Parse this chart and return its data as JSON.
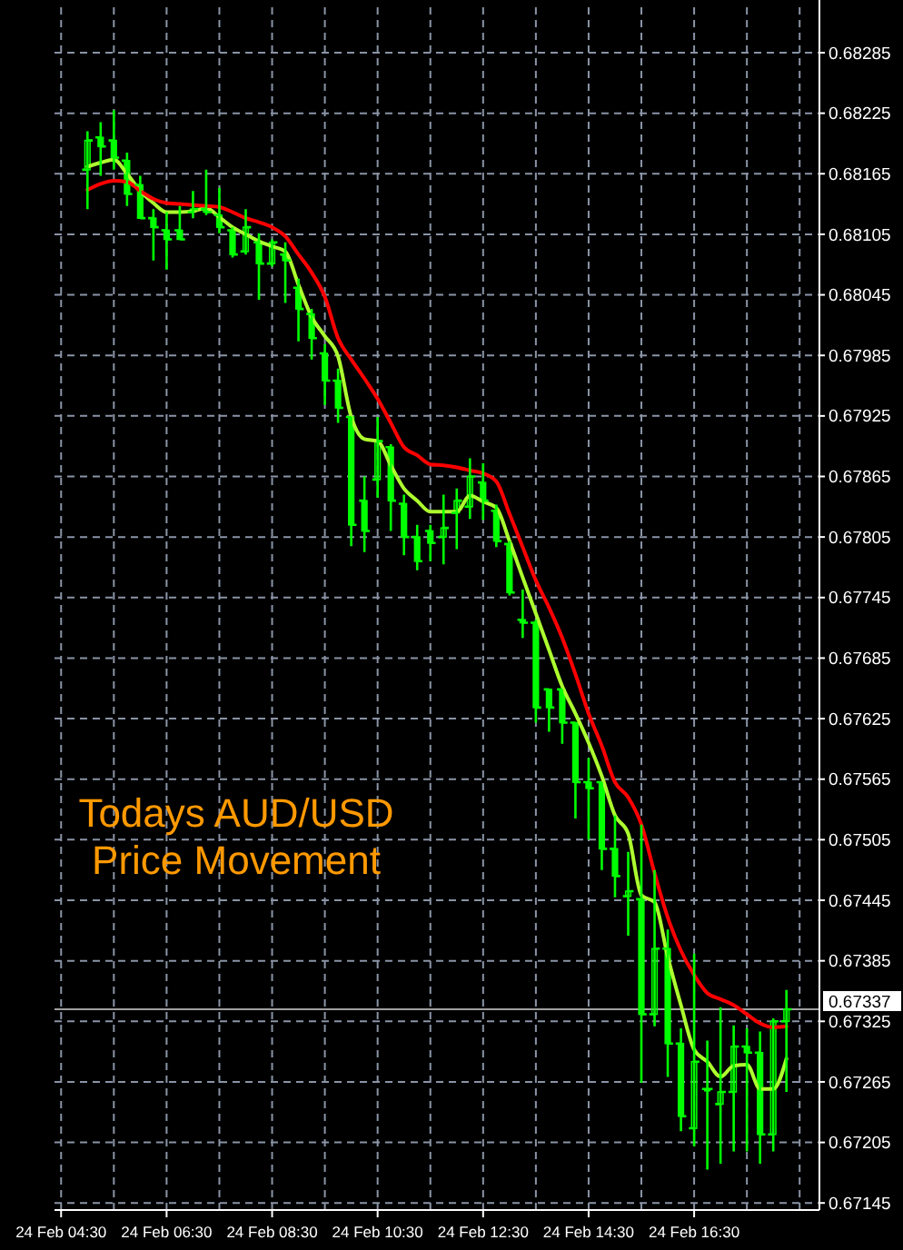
{
  "chart_data": {
    "type": "candlestick",
    "title": "Todays AUD/USD Price Movement",
    "color": "#00ff00",
    "categories": [
      "24 Feb 04:30",
      null,
      null,
      null,
      null,
      null,
      null,
      null,
      "24 Feb 06:30",
      null,
      null,
      null,
      null,
      null,
      null,
      null,
      "24 Feb 08:30",
      null,
      null,
      null,
      null,
      null,
      null,
      null,
      "24 Feb 10:30",
      null,
      null,
      null,
      null,
      null,
      null,
      null,
      "24 Feb 12:30",
      null,
      null,
      null,
      null,
      null,
      null,
      null,
      "24 Feb 14:30",
      null,
      null,
      null,
      null,
      null,
      null,
      null,
      "24 Feb 16:30",
      null,
      null,
      null,
      null,
      null,
      null,
      null
    ],
    "ohlc": [
      null,
      null,
      [
        0.68169,
        0.68207,
        0.6813,
        0.68198
      ],
      [
        0.68201,
        0.68216,
        0.68163,
        0.68192
      ],
      [
        0.68198,
        0.68228,
        0.68169,
        0.68181
      ],
      [
        0.68178,
        0.68186,
        0.68133,
        0.68145
      ],
      [
        0.68154,
        0.68163,
        0.68121,
        0.68121
      ],
      [
        0.68121,
        0.6813,
        0.68079,
        0.68112
      ],
      [
        0.68109,
        0.68127,
        0.6807,
        0.681
      ],
      [
        0.68109,
        0.68133,
        0.681,
        0.681
      ],
      [
        0.68127,
        0.68148,
        0.68121,
        0.6813
      ],
      [
        0.6813,
        0.68169,
        0.68124,
        0.68127
      ],
      [
        0.68124,
        0.68151,
        0.68106,
        0.68112
      ],
      [
        0.68109,
        0.68112,
        0.68082,
        0.68085
      ],
      [
        0.68088,
        0.6813,
        0.68085,
        0.68112
      ],
      [
        0.68097,
        0.68106,
        0.6804,
        0.68076
      ],
      [
        0.68076,
        0.681,
        0.68073,
        0.68097
      ],
      [
        0.68085,
        0.68097,
        0.68037,
        0.68079
      ],
      [
        0.68052,
        0.68061,
        0.67999,
        0.68031
      ],
      [
        0.68026,
        0.68031,
        0.67981,
        0.68002
      ],
      [
        0.67987,
        0.67996,
        0.67936,
        0.6796
      ],
      [
        0.6796,
        0.67972,
        0.67918,
        0.67933
      ],
      [
        0.67924,
        0.67924,
        0.67796,
        0.67817
      ],
      [
        0.67841,
        0.67865,
        0.6779,
        0.67811
      ],
      [
        0.67862,
        0.67924,
        0.67844,
        0.679
      ],
      [
        0.67894,
        0.67897,
        0.67811,
        0.67841
      ],
      [
        0.67838,
        0.67847,
        0.67787,
        0.67805
      ],
      [
        0.67805,
        0.67817,
        0.67772,
        0.67781
      ],
      [
        0.67811,
        0.67817,
        0.67781,
        0.67799
      ],
      [
        0.67805,
        0.67847,
        0.67778,
        0.67814
      ],
      [
        0.67829,
        0.67853,
        0.67793,
        0.67841
      ],
      [
        0.67835,
        0.67883,
        0.67823,
        0.67865
      ],
      [
        0.67859,
        0.67878,
        0.67822,
        0.67841
      ],
      [
        0.67831,
        0.67837,
        0.67795,
        0.67801
      ],
      [
        0.67798,
        0.67801,
        0.67747,
        0.6775
      ],
      [
        0.67723,
        0.67753,
        0.67705,
        0.6772
      ],
      [
        0.6772,
        0.67723,
        0.67621,
        0.67636
      ],
      [
        0.67654,
        0.67654,
        0.67612,
        0.67636
      ],
      [
        0.67654,
        0.67654,
        0.676,
        0.67621
      ],
      [
        0.67621,
        0.67621,
        0.67526,
        0.67562
      ],
      [
        0.67562,
        0.67586,
        0.67505,
        0.67556
      ],
      [
        0.67562,
        0.67562,
        0.67475,
        0.67496
      ],
      [
        0.67496,
        0.67529,
        0.67448,
        0.67469
      ],
      [
        0.67449,
        0.67493,
        0.6741,
        0.67454
      ],
      [
        0.67446,
        0.6752,
        0.67264,
        0.67332
      ],
      [
        0.67332,
        0.67475,
        0.6732,
        0.67397
      ],
      [
        0.67397,
        0.67416,
        0.6727,
        0.67303
      ],
      [
        0.67303,
        0.67318,
        0.67216,
        0.67231
      ],
      [
        0.67219,
        0.67392,
        0.67201,
        0.67285
      ],
      [
        0.67258,
        0.67306,
        0.67178,
        0.67258
      ],
      [
        0.67243,
        0.67339,
        0.67184,
        0.67255
      ],
      [
        0.67255,
        0.67321,
        0.67196,
        0.673
      ],
      [
        0.673,
        0.67318,
        0.67196,
        0.67294
      ],
      [
        0.67294,
        0.67315,
        0.67184,
        0.67213
      ],
      [
        0.67213,
        0.67328,
        0.67196,
        0.67325
      ],
      [
        0.67325,
        0.67356,
        0.67255,
        0.67337
      ]
    ],
    "series": [
      {
        "type": "line",
        "color": "#adff2f",
        "values": [
          null,
          null,
          0.68172,
          0.68176,
          0.68179,
          0.68165,
          0.68148,
          0.68136,
          0.68127,
          0.68127,
          0.68128,
          0.68131,
          0.68122,
          0.68112,
          0.68105,
          0.68098,
          0.68093,
          0.68088,
          0.68055,
          0.68023,
          0.68004,
          0.67984,
          0.67924,
          0.67902,
          0.679,
          0.67876,
          0.67853,
          0.67841,
          0.6783,
          0.6783,
          0.6783,
          0.67846,
          0.6784,
          0.67834,
          0.67801,
          0.67765,
          0.67729,
          0.67693,
          0.67657,
          0.6763,
          0.67601,
          0.67568,
          0.67529,
          0.67511,
          0.6745,
          0.67443,
          0.67389,
          0.67341,
          0.67297,
          0.67285,
          0.6727,
          0.67281,
          0.67282,
          0.67258,
          0.67258,
          0.67288
        ]
      },
      {
        "type": "line",
        "color": "#ff0000",
        "values": [
          null,
          null,
          0.68149,
          0.68155,
          0.68158,
          0.68157,
          0.68148,
          0.6814,
          0.68136,
          0.68135,
          0.68134,
          0.68133,
          0.68132,
          0.68127,
          0.68121,
          0.68117,
          0.68112,
          0.68103,
          0.68085,
          0.68067,
          0.68043,
          0.68002,
          0.67981,
          0.67962,
          0.67942,
          0.67918,
          0.67894,
          0.67886,
          0.67877,
          0.67876,
          0.67874,
          0.67871,
          0.67868,
          0.6786,
          0.67828,
          0.67795,
          0.67762,
          0.67735,
          0.67705,
          0.67669,
          0.6763,
          0.67598,
          0.67562,
          0.67547,
          0.6752,
          0.67472,
          0.67428,
          0.67395,
          0.67371,
          0.67353,
          0.67347,
          0.67341,
          0.67332,
          0.67323,
          0.67319,
          0.6732
        ]
      }
    ],
    "ylim": [
      0.67138,
      0.6833
    ],
    "yticks": [
      0.67145,
      0.67205,
      0.67265,
      0.67325,
      0.67385,
      0.67445,
      0.67505,
      0.67565,
      0.67625,
      0.67685,
      0.67745,
      0.67805,
      0.67865,
      0.67925,
      0.67985,
      0.68045,
      0.68105,
      0.68165,
      0.68225,
      0.68285
    ],
    "grid": true,
    "ref_lines": [
      {
        "axis": "y",
        "value": 0.67337,
        "label": "0.67337",
        "color": "#a0a0a0"
      }
    ]
  }
}
